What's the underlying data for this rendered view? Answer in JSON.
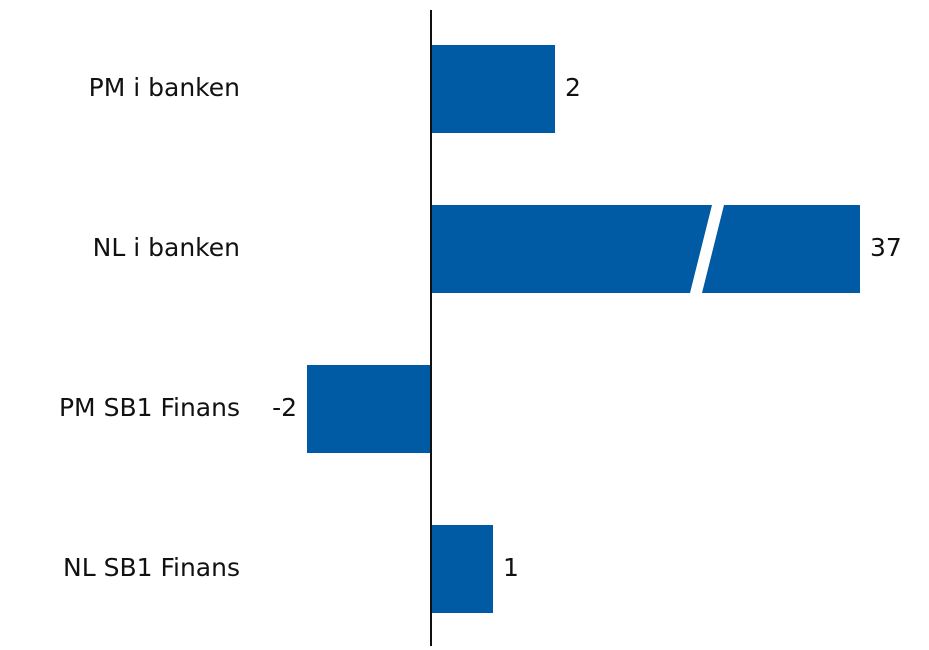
{
  "chart_data": {
    "type": "barh",
    "categories": [
      "PM i banken",
      "NL i banken",
      "PM SB1 Finans",
      "NL SB1 Finans"
    ],
    "values": [
      2,
      37,
      -2,
      1
    ],
    "color": "#005aa4",
    "xlim": [
      -2,
      2
    ],
    "axis_break": true
  }
}
